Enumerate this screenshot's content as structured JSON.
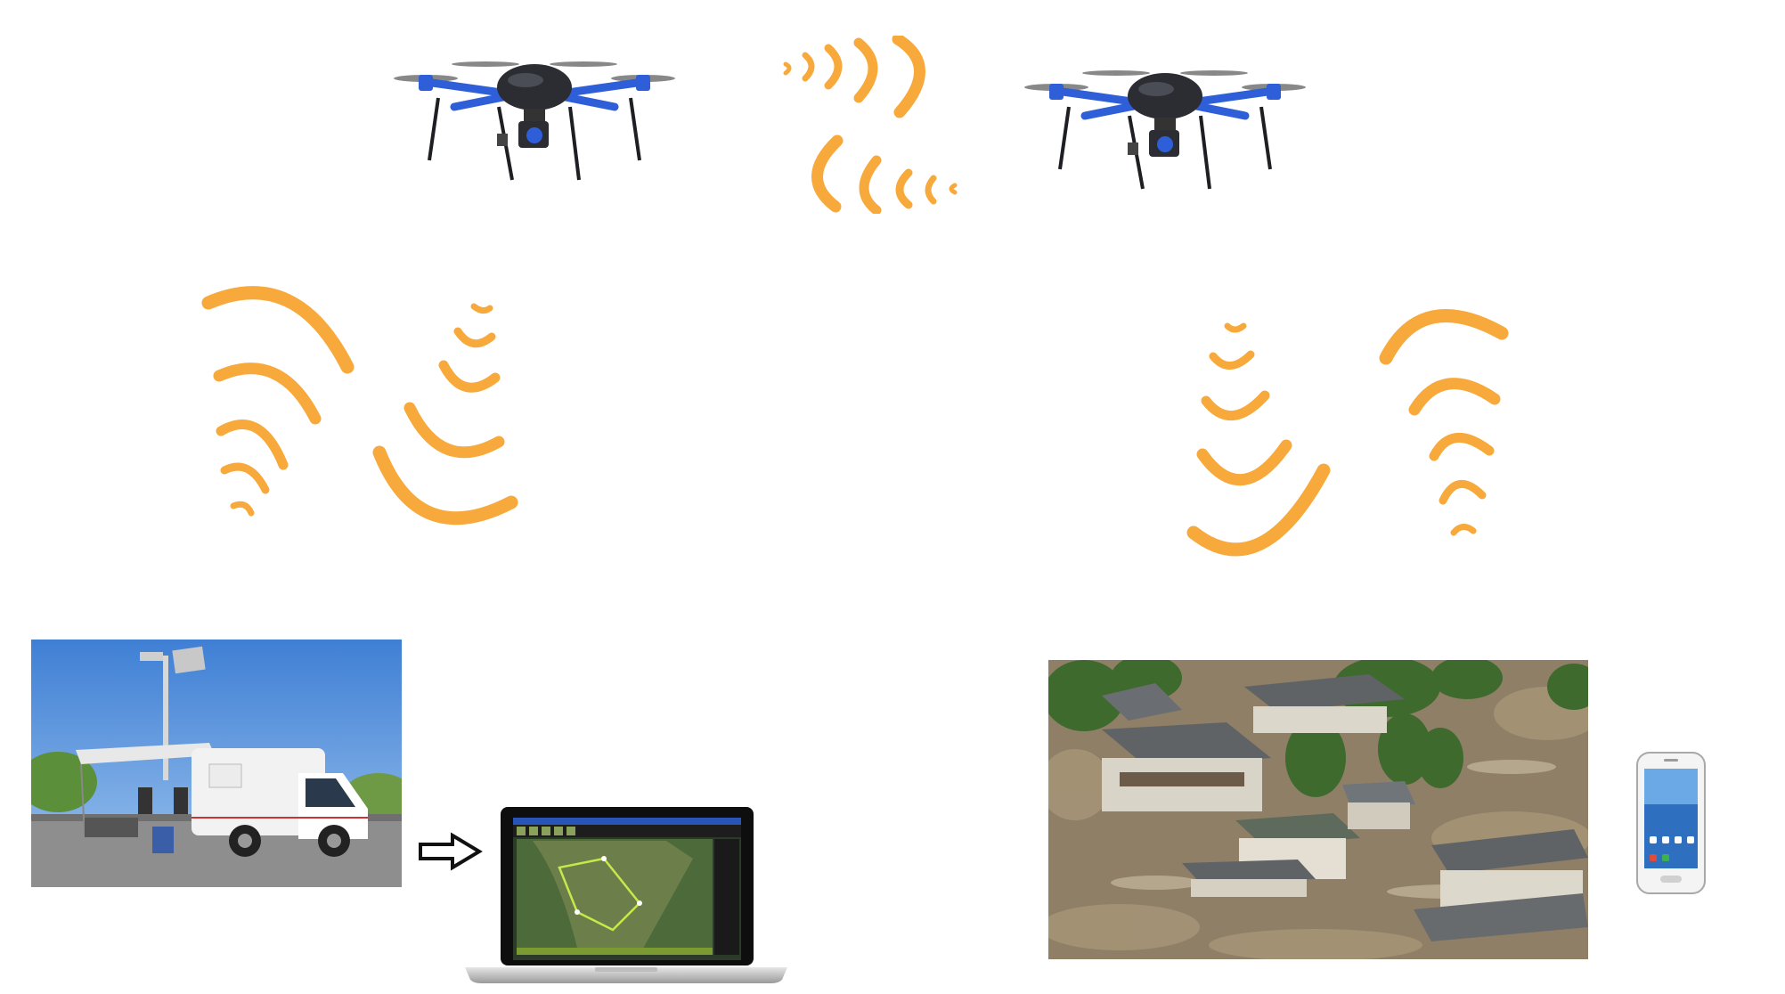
{
  "scene": {
    "background": "#ffffff",
    "wave_color": "#f7a93b",
    "drone_arm_color": "#2e5fd8",
    "drone_body_color": "#2b2d33",
    "nodes": [
      {
        "id": "drone-left",
        "icon": "drone-icon"
      },
      {
        "id": "drone-right",
        "icon": "drone-icon"
      },
      {
        "id": "ground-station-van",
        "icon": "van-photo"
      },
      {
        "id": "control-laptop",
        "icon": "laptop-icon"
      },
      {
        "id": "flood-area",
        "icon": "flood-photo"
      },
      {
        "id": "smartphone",
        "icon": "phone-icon"
      }
    ],
    "links": [
      {
        "from": "drone-left",
        "to": "drone-right",
        "type": "wireless"
      },
      {
        "from": "drone-left",
        "to": "ground-station-van",
        "type": "wireless"
      },
      {
        "from": "drone-right",
        "to": "flood-area",
        "type": "wireless"
      },
      {
        "from": "ground-station-van",
        "to": "control-laptop",
        "type": "arrow"
      }
    ]
  }
}
